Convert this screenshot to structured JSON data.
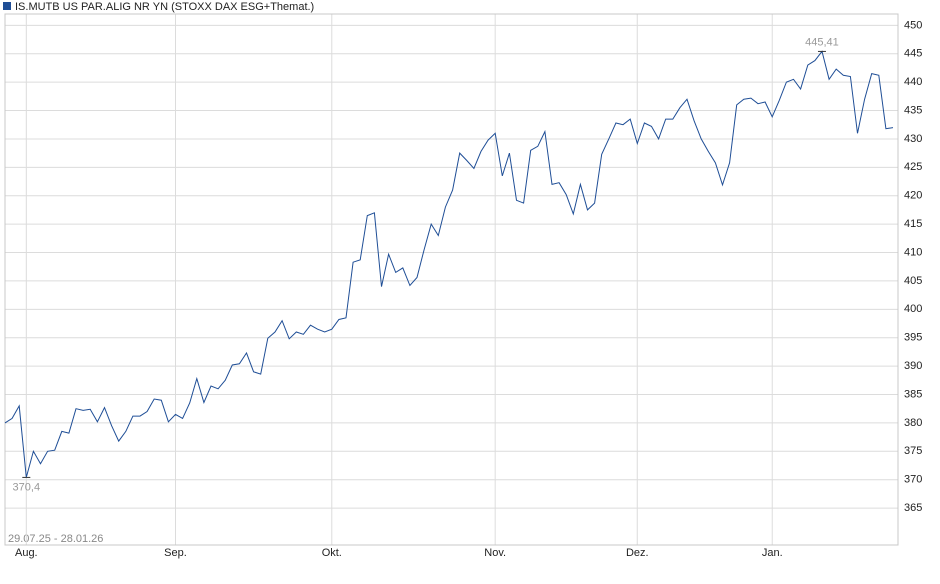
{
  "chart_data": {
    "type": "line",
    "date_range": "29.07.25 - 28.01.26",
    "categories": [
      null,
      null,
      null,
      "Aug.",
      null,
      null,
      null,
      null,
      null,
      null,
      null,
      null,
      null,
      null,
      null,
      null,
      null,
      null,
      null,
      null,
      null,
      null,
      null,
      null,
      "Sep.",
      null,
      null,
      null,
      null,
      null,
      null,
      null,
      null,
      null,
      null,
      null,
      null,
      null,
      null,
      null,
      null,
      null,
      null,
      null,
      null,
      null,
      "Okt.",
      null,
      null,
      null,
      null,
      null,
      null,
      null,
      null,
      null,
      null,
      null,
      null,
      null,
      null,
      null,
      null,
      null,
      null,
      null,
      null,
      null,
      null,
      "Nov.",
      null,
      null,
      null,
      null,
      null,
      null,
      null,
      null,
      null,
      null,
      null,
      null,
      null,
      null,
      null,
      null,
      null,
      null,
      null,
      "Dez.",
      null,
      null,
      null,
      null,
      null,
      null,
      null,
      null,
      null,
      null,
      null,
      null,
      null,
      null,
      null,
      null,
      null,
      null,
      "Jan.",
      null,
      null,
      null,
      null,
      null,
      null,
      null,
      null,
      null,
      null,
      null,
      null,
      null,
      null,
      null,
      null,
      null
    ],
    "series": [
      {
        "name": "IS.MUTB US PAR.ALIG NR YN (STOXX DAX ESG+Themat.)",
        "color": "#1f4e96",
        "values": [
          380.0,
          380.8,
          383.0,
          370.4,
          375.0,
          372.8,
          375.0,
          375.2,
          378.5,
          378.2,
          382.5,
          382.2,
          382.4,
          380.2,
          382.7,
          379.5,
          376.8,
          378.5,
          381.2,
          381.2,
          382.0,
          384.2,
          384.0,
          380.2,
          381.5,
          380.8,
          383.5,
          387.8,
          383.6,
          386.5,
          386.0,
          387.5,
          390.2,
          390.4,
          392.3,
          389.0,
          388.6,
          394.9,
          396.0,
          398.0,
          394.8,
          396.0,
          395.6,
          397.2,
          396.5,
          396.0,
          396.5,
          398.2,
          398.5,
          408.3,
          408.7,
          416.5,
          417.0,
          404.0,
          409.7,
          406.5,
          407.3,
          404.2,
          405.6,
          410.5,
          415.0,
          413.0,
          418.0,
          421.0,
          427.5,
          426.2,
          424.8,
          427.8,
          429.8,
          431.0,
          423.5,
          427.5,
          419.2,
          418.7,
          428.0,
          428.7,
          431.3,
          422.0,
          422.3,
          420.2,
          416.8,
          422.0,
          417.5,
          418.7,
          427.3,
          430.0,
          432.8,
          432.5,
          433.5,
          429.2,
          432.8,
          432.2,
          430.0,
          433.5,
          433.5,
          435.5,
          437.0,
          433.2,
          430.0,
          427.8,
          425.8,
          421.9,
          425.8,
          436.0,
          437.0,
          437.2,
          436.2,
          436.5,
          433.9,
          436.8,
          440.0,
          440.5,
          438.8,
          443.0,
          443.8,
          445.41,
          440.5,
          442.3,
          441.2,
          441.0,
          431.0,
          437.0,
          441.5,
          441.2,
          431.8,
          432.0
        ],
        "value_labels": [
          null,
          null,
          null,
          "370,4",
          null,
          null,
          null,
          null,
          null,
          null,
          null,
          null,
          null,
          null,
          null,
          null,
          null,
          null,
          null,
          null,
          null,
          null,
          null,
          null,
          null,
          null,
          null,
          null,
          null,
          null,
          null,
          null,
          null,
          null,
          null,
          null,
          null,
          null,
          null,
          null,
          null,
          null,
          null,
          null,
          null,
          null,
          null,
          null,
          null,
          null,
          null,
          null,
          null,
          null,
          null,
          null,
          null,
          null,
          null,
          null,
          null,
          null,
          null,
          null,
          null,
          null,
          null,
          null,
          null,
          null,
          null,
          null,
          null,
          null,
          null,
          null,
          null,
          null,
          null,
          null,
          null,
          null,
          null,
          null,
          null,
          null,
          null,
          null,
          null,
          null,
          null,
          null,
          null,
          null,
          null,
          null,
          null,
          null,
          null,
          null,
          null,
          null,
          null,
          null,
          null,
          null,
          null,
          null,
          null,
          null,
          null,
          null,
          null,
          null,
          null,
          "445,41",
          null,
          null,
          null,
          null,
          null,
          null,
          null,
          null,
          null,
          null
        ]
      }
    ],
    "ylim": [
      358.5,
      452
    ],
    "yticks": [
      365,
      370,
      375,
      380,
      385,
      390,
      395,
      400,
      405,
      410,
      415,
      420,
      425,
      430,
      435,
      440,
      445,
      450
    ],
    "grid": true
  }
}
